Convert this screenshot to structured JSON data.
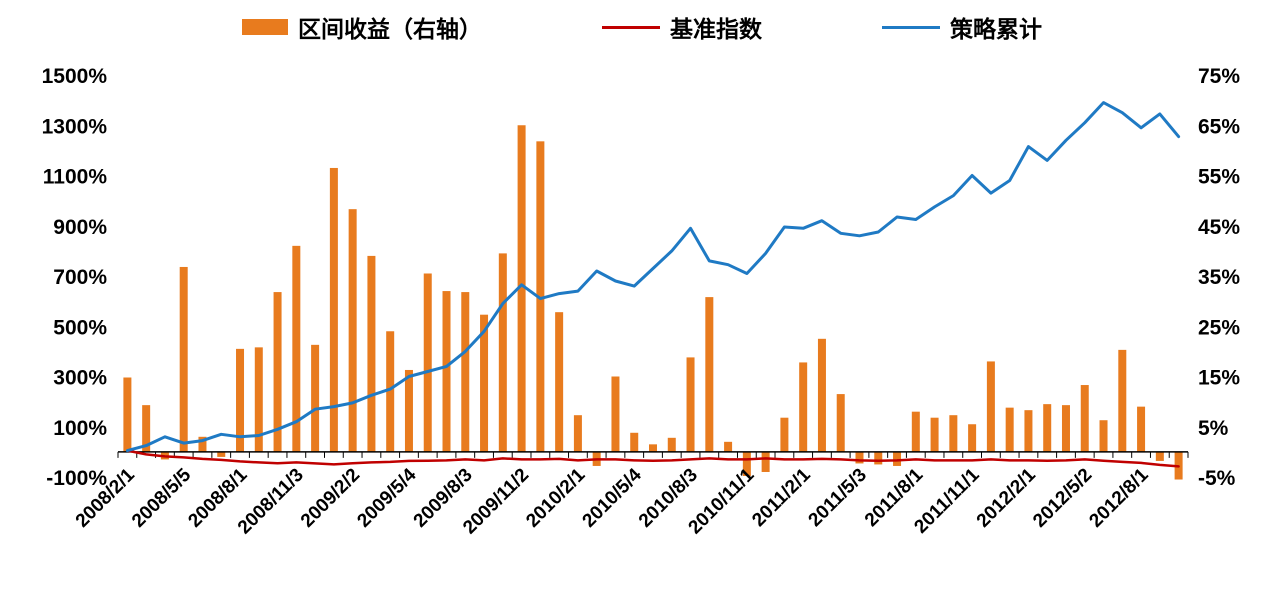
{
  "legend": {
    "bar_label": "区间收益（右轴）",
    "benchmark_label": "基准指数",
    "strategy_label": "策略累计"
  },
  "chart_data": {
    "type": "bar",
    "title": "",
    "legend_position": "top",
    "grid": false,
    "categories_count": 57,
    "x_labels": [
      "2008/2/1",
      "2008/5/5",
      "2008/8/1",
      "2008/11/3",
      "2009/2/2",
      "2009/5/4",
      "2009/8/3",
      "2009/11/2",
      "2010/2/1",
      "2010/5/4",
      "2010/8/3",
      "2010/11/1",
      "2011/2/1",
      "2011/5/3",
      "2011/8/1",
      "2011/11/1",
      "2012/2/1",
      "2012/5/2",
      "2012/8/1"
    ],
    "x_label_indices": [
      0,
      3,
      6,
      9,
      12,
      15,
      18,
      21,
      24,
      27,
      30,
      33,
      36,
      39,
      42,
      45,
      48,
      51,
      54
    ],
    "left_axis": {
      "min": -100,
      "max": 1500,
      "tick_labels": [
        "1500%",
        "1300%",
        "1100%",
        "900%",
        "700%",
        "500%",
        "300%",
        "100%",
        "-100%"
      ],
      "tick_values": [
        1500,
        1300,
        1100,
        900,
        700,
        500,
        300,
        100,
        -100
      ]
    },
    "right_axis": {
      "min": -5,
      "max": 75,
      "tick_labels": [
        "75%",
        "65%",
        "55%",
        "45%",
        "35%",
        "25%",
        "15%",
        "5%",
        "-5%"
      ],
      "tick_values": [
        75,
        65,
        55,
        45,
        35,
        25,
        15,
        5,
        -5
      ]
    },
    "bar_series": {
      "name": "区间收益（右轴）",
      "axis": "right",
      "color": "#E87B1E",
      "values": [
        14.8,
        9.3,
        -1.5,
        36.8,
        3.0,
        -1.0,
        20.5,
        20.8,
        31.8,
        41.0,
        21.3,
        56.5,
        48.3,
        39.0,
        24.0,
        16.3,
        35.5,
        32.0,
        31.8,
        27.3,
        39.5,
        65.0,
        61.8,
        27.8,
        7.3,
        -2.8,
        15.0,
        3.8,
        1.5,
        2.8,
        18.8,
        30.8,
        2.0,
        -4.8,
        -4.0,
        6.8,
        17.8,
        22.5,
        11.5,
        -2.3,
        -2.5,
        -2.8,
        8.0,
        6.8,
        7.3,
        5.5,
        18.0,
        8.8,
        8.3,
        9.5,
        9.3,
        13.3,
        6.3,
        20.3,
        9.0,
        -1.8,
        -5.5
      ]
    },
    "line_series": [
      {
        "name": "基准指数",
        "axis": "left",
        "color": "#C00000",
        "values": [
          5,
          -10,
          -18,
          -22,
          -28,
          -32,
          -38,
          -42,
          -45,
          -42,
          -46,
          -50,
          -45,
          -42,
          -40,
          -36,
          -35,
          -34,
          -30,
          -34,
          -26,
          -30,
          -30,
          -28,
          -34,
          -30,
          -30,
          -34,
          -35,
          -34,
          -30,
          -26,
          -30,
          -30,
          -26,
          -30,
          -30,
          -28,
          -30,
          -34,
          -35,
          -34,
          -30,
          -34,
          -34,
          -34,
          -30,
          -34,
          -34,
          -35,
          -34,
          -30,
          -35,
          -40,
          -44,
          -52,
          -58
        ]
      },
      {
        "name": "策略累计",
        "axis": "left",
        "color": "#1F7AC4",
        "values": [
          5,
          25,
          60,
          35,
          45,
          70,
          60,
          65,
          90,
          120,
          170,
          180,
          195,
          225,
          250,
          300,
          320,
          340,
          400,
          480,
          590,
          665,
          610,
          630,
          640,
          720,
          680,
          660,
          730,
          800,
          890,
          760,
          745,
          710,
          790,
          895,
          890,
          920,
          870,
          860,
          875,
          935,
          925,
          975,
          1020,
          1100,
          1030,
          1080,
          1215,
          1160,
          1240,
          1310,
          1390,
          1350,
          1290,
          1345,
          1255
        ]
      }
    ]
  }
}
